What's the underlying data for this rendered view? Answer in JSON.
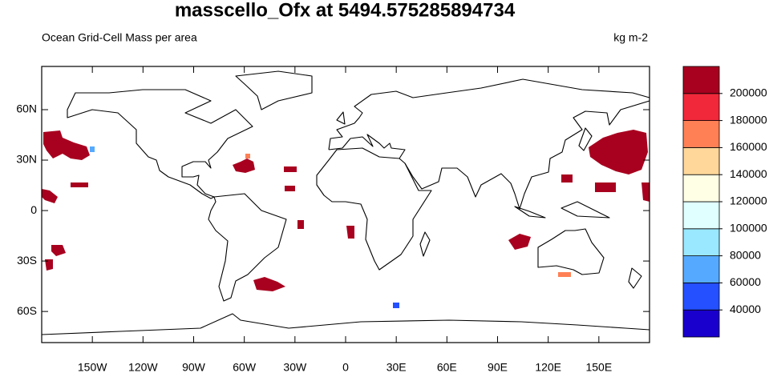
{
  "title": "masscello_Ofx at 5494.575285894734",
  "subtitle": "Ocean Grid-Cell Mass per area",
  "units": "kg m-2",
  "map": {
    "xlim": [
      -180,
      180
    ],
    "ylim": [
      -78.5,
      85.7
    ],
    "xticks": [
      {
        "value": -150,
        "label": "150W"
      },
      {
        "value": -120,
        "label": "120W"
      },
      {
        "value": -90,
        "label": "90W"
      },
      {
        "value": -60,
        "label": "60W"
      },
      {
        "value": -30,
        "label": "30W"
      },
      0,
      {
        "value": 30,
        "label": "30E"
      },
      {
        "value": 60,
        "label": "60E"
      },
      {
        "value": 90,
        "label": "90E"
      },
      {
        "value": 120,
        "label": "120E"
      },
      {
        "value": 150,
        "label": "150E"
      }
    ],
    "yticks": [
      {
        "value": -60,
        "label": "60S"
      },
      {
        "value": -30,
        "label": "30S"
      },
      0,
      {
        "value": 30,
        "label": "30N"
      },
      {
        "value": 60,
        "label": "60N"
      }
    ]
  },
  "colorbar": {
    "levels": [
      40000,
      60000,
      80000,
      100000,
      120000,
      140000,
      160000,
      180000,
      200000
    ],
    "colors": [
      "#1a00cc",
      "#2450ff",
      "#55aaff",
      "#99e8ff",
      "#e0ffff",
      "#ffffe6",
      "#ffd79a",
      "#ff8055",
      "#f0283a",
      "#a8001f"
    ]
  }
}
